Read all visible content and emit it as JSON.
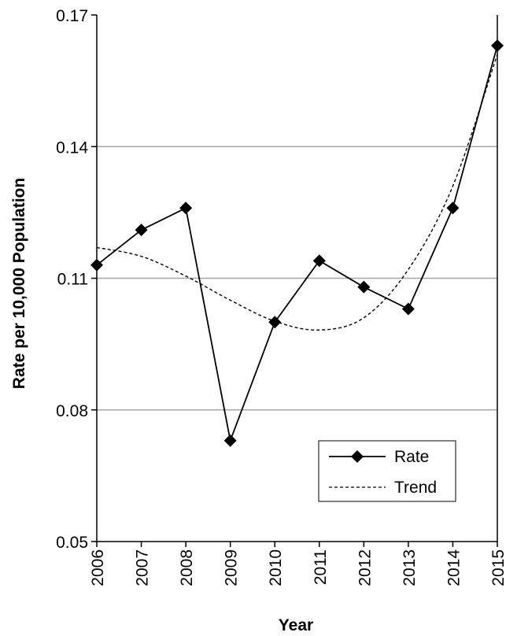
{
  "chart_data": {
    "type": "line",
    "title": "",
    "xlabel": "Year",
    "ylabel": "Rate per 10,000 Population",
    "x": [
      "2006",
      "2007",
      "2008",
      "2009",
      "2010",
      "2011",
      "2012",
      "2013",
      "2014",
      "2015"
    ],
    "series": [
      {
        "name": "Rate",
        "values": [
          0.113,
          0.121,
          0.126,
          0.073,
          0.1,
          0.114,
          0.108,
          0.103,
          0.126,
          0.163
        ],
        "style": "solid",
        "marker": "diamond",
        "color": "#000000"
      },
      {
        "name": "Trend",
        "values": [
          0.117,
          0.115,
          0.1105,
          0.105,
          0.1002,
          0.0982,
          0.101,
          0.112,
          0.131,
          0.161
        ],
        "style": "dashed",
        "marker": "none",
        "color": "#000000"
      }
    ],
    "yticks": [
      "0.05",
      "0.08",
      "0.11",
      "0.14",
      "0.17"
    ],
    "ylim": [
      0.05,
      0.17
    ],
    "grid": true,
    "grid_color": "#a6a6a6",
    "legend_position": "bottom-right"
  }
}
